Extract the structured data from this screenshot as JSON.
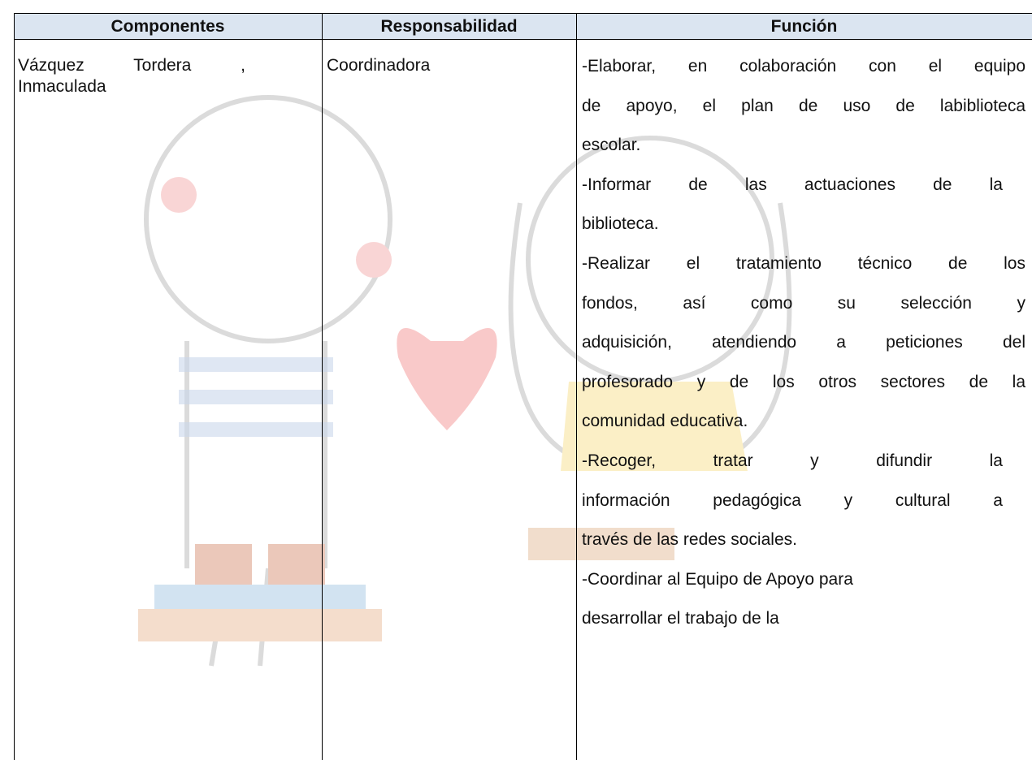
{
  "table": {
    "header": [
      "Componentes",
      "Responsabilidad",
      "Función"
    ],
    "rows": [
      [
        [
          "Vázquez Tordera ,",
          "Inmaculada"
        ],
        [
          "Coordinadora"
        ],
        [
          "-Elaborar, en colaboración con el equipo",
          "de apoyo, el plan de uso de labiblioteca",
          "escolar.",
          "-Informar de las actuaciones de la",
          "biblioteca.",
          "-Realizar el tratamiento técnico de los",
          "fondos, así como su selección y",
          "adquisición, atendiendo a peticiones del",
          "profesorado y de los otros sectores de la",
          "comunidad educativa.",
          "-Recoger, tratar y difundir la",
          "información pedagógica y cultural a",
          "través de las redes sociales.",
          "-Coordinar al Equipo de Apoyo para",
          "desarrollar el trabajo de la"
        ]
      ]
    ]
  }
}
